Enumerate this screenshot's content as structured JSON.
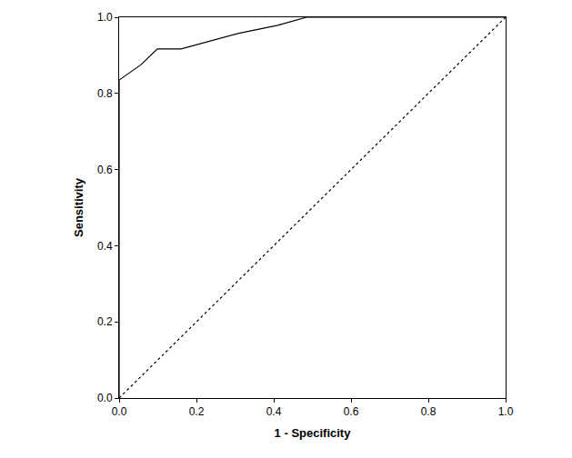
{
  "chart_data": {
    "type": "line",
    "xlabel": "1 - Specificity",
    "ylabel": "Sensitivity",
    "series": [
      {
        "x": [
          0,
          0,
          0.056,
          0.099,
          0.16,
          0.31,
          0.41,
          0.485,
          1.0
        ],
        "values": [
          0,
          0.835,
          0.875,
          0.917,
          0.917,
          0.958,
          0.979,
          1.0,
          1.0
        ],
        "color": "#000000",
        "line_style": "solid"
      },
      {
        "x": [
          0,
          1.0
        ],
        "values": [
          0,
          1.0
        ],
        "color": "#000000",
        "line_style": "dotted"
      }
    ],
    "xlim": [
      0,
      1.0
    ],
    "ylim": [
      0,
      1.0
    ],
    "xticks": [
      {
        "value": 0,
        "label": "0.0"
      },
      {
        "value": 0.2,
        "label": "0.2"
      },
      {
        "value": 0.4,
        "label": "0.4"
      },
      {
        "value": 0.6,
        "label": "0.6"
      },
      {
        "value": 0.8,
        "label": "0.8"
      },
      {
        "value": 1.0,
        "label": "1.0"
      }
    ],
    "yticks": [
      {
        "value": 0,
        "label": "0.0"
      },
      {
        "value": 0.2,
        "label": "0.2"
      },
      {
        "value": 0.4,
        "label": "0.4"
      },
      {
        "value": 0.6,
        "label": "0.6"
      },
      {
        "value": 0.8,
        "label": "0.8"
      },
      {
        "value": 1.0,
        "label": "1.0"
      }
    ],
    "grid": false
  }
}
